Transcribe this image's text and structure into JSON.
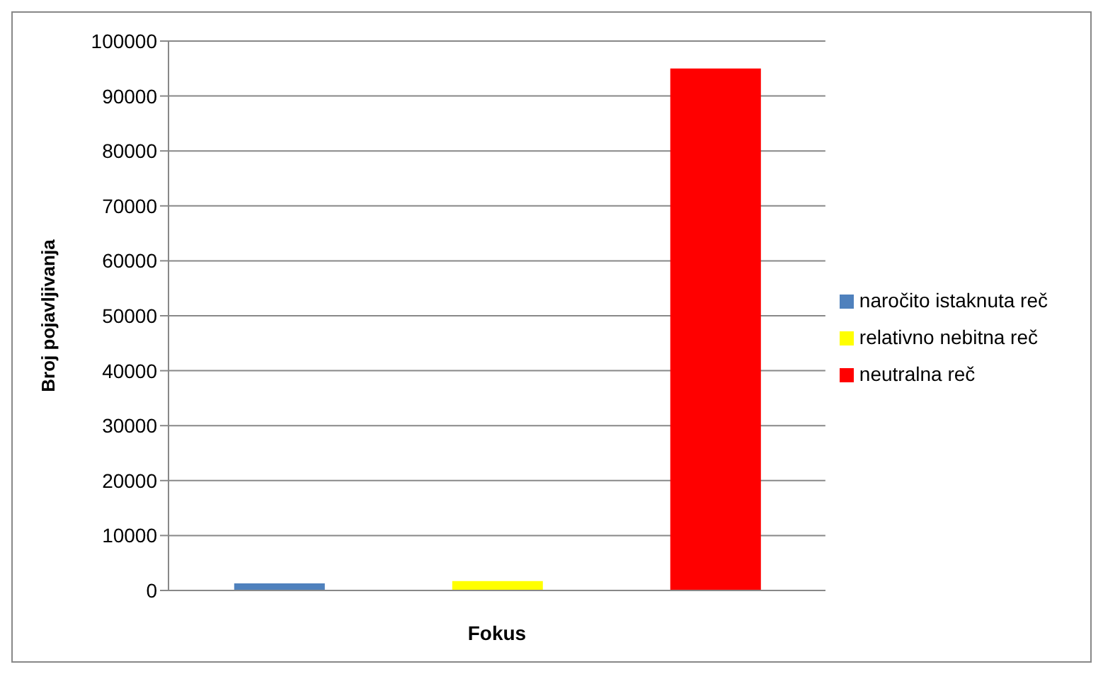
{
  "chart_data": {
    "type": "bar",
    "xlabel": "Fokus",
    "ylabel": "Broj pojavljivanja",
    "categories": [
      null
    ],
    "series": [
      {
        "name": "naročito istaknuta reč",
        "color": "#4f81bd",
        "values": [
          1300
        ]
      },
      {
        "name": "relativno nebitna reč",
        "color": "#ffff00",
        "values": [
          1700
        ]
      },
      {
        "name": "neutralna reč",
        "color": "#ff0000",
        "values": [
          95000
        ]
      }
    ],
    "ylim": [
      0,
      100000
    ],
    "yticks": [
      0,
      10000,
      20000,
      30000,
      40000,
      50000,
      60000,
      70000,
      80000,
      90000,
      100000
    ],
    "grid": "y",
    "legend": "right"
  }
}
